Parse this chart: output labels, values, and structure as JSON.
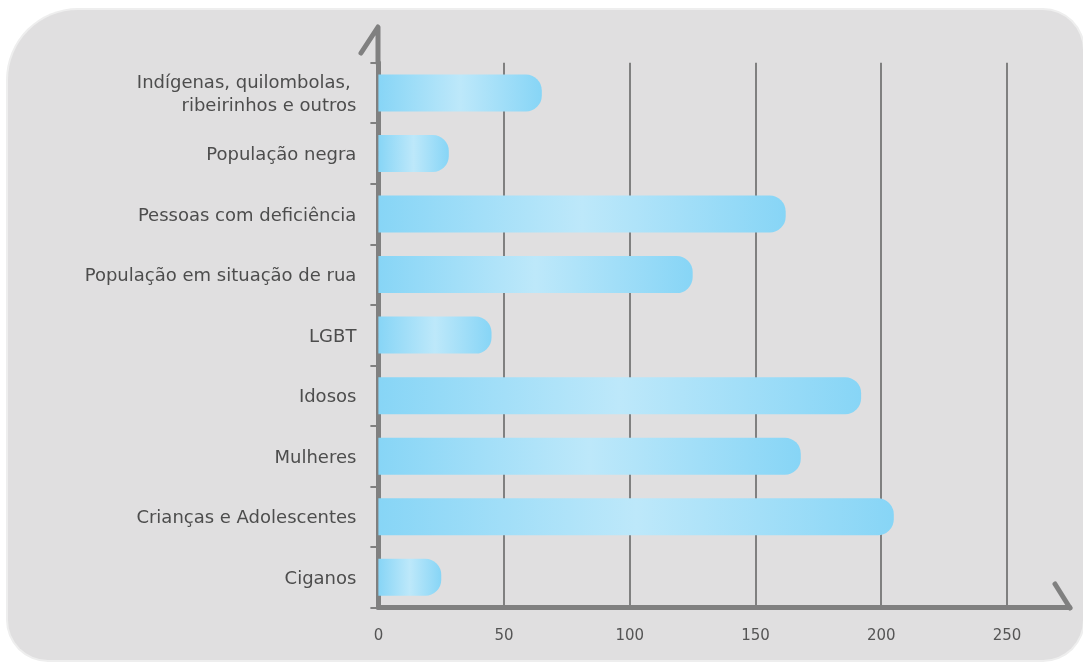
{
  "chart_data": {
    "type": "bar",
    "orientation": "horizontal",
    "categories": [
      "Indígenas, quilombolas, ribeirinhos e outros",
      "População negra",
      "Pessoas com deficiência",
      "População em situação de rua",
      "LGBT",
      "Idosos",
      "Mulheres",
      "Crianças e Adolescentes",
      "Ciganos"
    ],
    "values": [
      65,
      28,
      162,
      125,
      45,
      192,
      168,
      205,
      25
    ],
    "color": "#87d5f6",
    "xlim": [
      0,
      275
    ],
    "xticks": [
      0,
      50,
      100,
      150,
      200,
      250
    ],
    "grid": "x"
  }
}
